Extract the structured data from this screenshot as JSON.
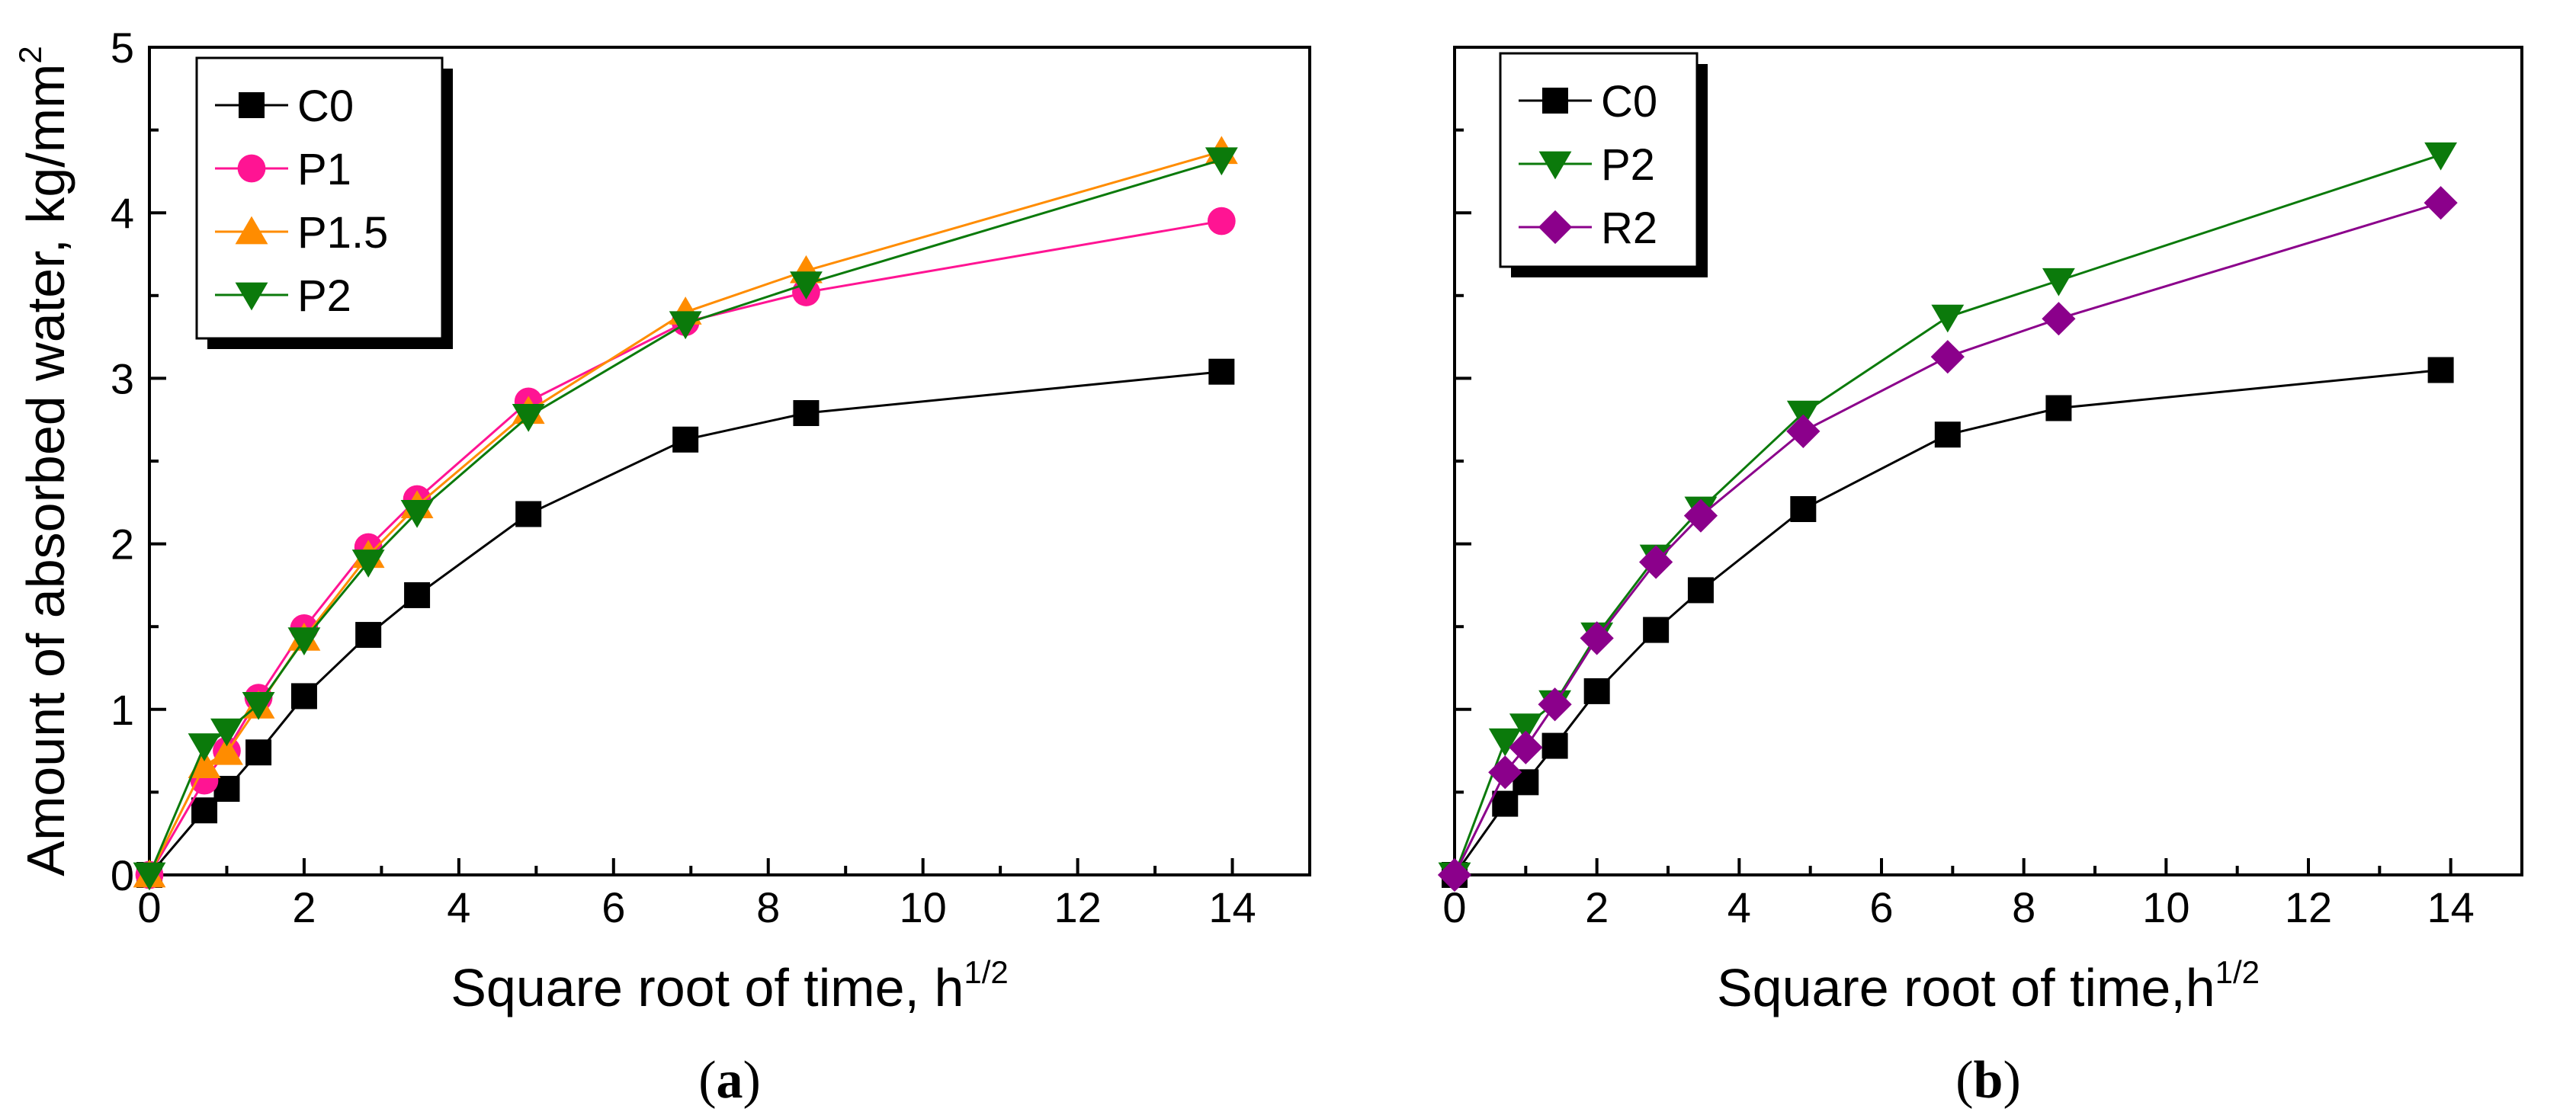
{
  "chart_data": [
    {
      "panel_label": "a",
      "type": "line",
      "xlabel": "Square root of time, h",
      "xlabel_sup": "1/2",
      "ylabel": "Amount of absorbed water, kg/mm",
      "ylabel_sup": "2",
      "xlim": [
        0,
        15
      ],
      "ylim": [
        0,
        5
      ],
      "x_ticks": [
        0,
        2,
        4,
        6,
        8,
        10,
        12,
        14
      ],
      "y_ticks": [
        0,
        1,
        2,
        3,
        4,
        5
      ],
      "x_tick_labels": [
        "0",
        "2",
        "4",
        "6",
        "8",
        "10",
        "12",
        "14"
      ],
      "y_tick_labels": [
        "0",
        "1",
        "2",
        "3",
        "4",
        "5"
      ],
      "legend_position": "top-left",
      "x": [
        0,
        0.71,
        1.0,
        1.41,
        2.0,
        2.83,
        3.46,
        4.9,
        6.93,
        8.49,
        13.86
      ],
      "series": [
        {
          "name": "C0",
          "marker": "square",
          "color": "#000000",
          "values": [
            0,
            0.39,
            0.52,
            0.74,
            1.08,
            1.45,
            1.69,
            2.18,
            2.63,
            2.79,
            3.04
          ]
        },
        {
          "name": "P1",
          "marker": "circle",
          "color": "#ff1493",
          "values": [
            0,
            0.57,
            0.75,
            1.07,
            1.49,
            1.98,
            2.27,
            2.86,
            3.34,
            3.52,
            3.95
          ]
        },
        {
          "name": "P1.5",
          "marker": "triangle-up",
          "color": "#ff8c00",
          "values": [
            0,
            0.66,
            0.74,
            1.02,
            1.43,
            1.93,
            2.23,
            2.8,
            3.4,
            3.65,
            4.37
          ]
        },
        {
          "name": "P2",
          "marker": "triangle-down",
          "color": "#0b7a0b",
          "values": [
            0,
            0.78,
            0.87,
            1.03,
            1.42,
            1.89,
            2.19,
            2.77,
            3.33,
            3.57,
            4.32
          ]
        }
      ]
    },
    {
      "panel_label": "b",
      "type": "line",
      "xlabel": "Square root of time,h",
      "xlabel_sup": "1/2",
      "ylabel": "",
      "xlim": [
        0,
        15
      ],
      "ylim": [
        0,
        5
      ],
      "x_ticks": [
        0,
        2,
        4,
        6,
        8,
        10,
        12,
        14
      ],
      "y_ticks": [
        0,
        1,
        2,
        3,
        4,
        5
      ],
      "x_tick_labels": [
        "0",
        "2",
        "4",
        "6",
        "8",
        "10",
        "12",
        "14"
      ],
      "y_tick_labels": [],
      "legend_position": "top-left",
      "x": [
        0,
        0.71,
        1.0,
        1.41,
        2.0,
        2.83,
        3.46,
        4.9,
        6.93,
        8.49,
        13.86
      ],
      "series": [
        {
          "name": "C0",
          "marker": "square",
          "color": "#000000",
          "values": [
            0,
            0.43,
            0.56,
            0.78,
            1.11,
            1.48,
            1.72,
            2.21,
            2.66,
            2.82,
            3.05
          ]
        },
        {
          "name": "P2",
          "marker": "triangle-down",
          "color": "#0b7a0b",
          "values": [
            0,
            0.81,
            0.9,
            1.04,
            1.45,
            1.92,
            2.21,
            2.79,
            3.37,
            3.59,
            4.35
          ]
        },
        {
          "name": "R2",
          "marker": "diamond",
          "color": "#8b008b",
          "values": [
            0,
            0.62,
            0.77,
            1.03,
            1.43,
            1.89,
            2.17,
            2.68,
            3.13,
            3.36,
            4.06
          ]
        }
      ]
    }
  ]
}
